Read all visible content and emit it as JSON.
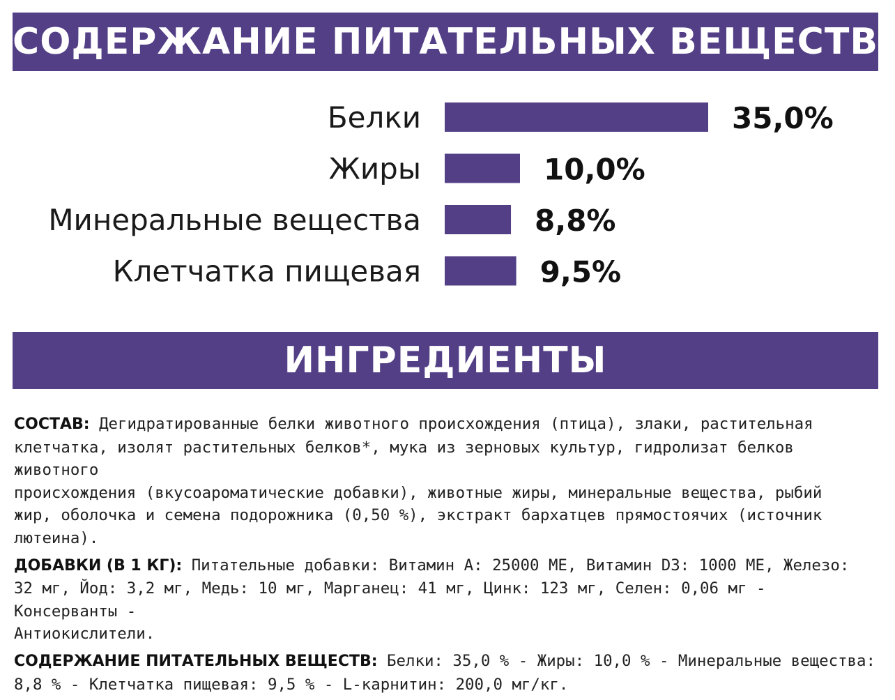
{
  "header": {
    "title": "СОДЕРЖАНИЕ ПИТАТЕЛЬНЫХ ВЕЩЕСТВ"
  },
  "colors": {
    "accent": "#533f86",
    "text": "#111111",
    "background": "#ffffff"
  },
  "chart_data": {
    "type": "bar",
    "orientation": "horizontal",
    "categories": [
      "Белки",
      "Жиры",
      "Минеральные вещества",
      "Клетчатка пищевая"
    ],
    "values": [
      35.0,
      10.0,
      8.8,
      9.5
    ],
    "value_labels": [
      "35,0%",
      "10,0%",
      "8,8%",
      "9,5%"
    ],
    "unit": "%",
    "grid": false,
    "legend": "none"
  },
  "ingredients_header": {
    "title": "ИНГРЕДИЕНТЫ"
  },
  "ingredients": {
    "composition": {
      "key": "СОСТАВ:",
      "lines": [
        " Дегидратированные белки животного происхождения (птица), злаки, растительная",
        "клетчатка, изолят растительных белков*, мука из зерновых культур, гидролизат белков животного",
        "происхождения (вкусоароматические добавки), животные жиры, минеральные вещества, рыбий",
        "жир, оболочка и семена подорожника (0,50 %), экстракт бархатцев прямостоячих (источник",
        "лютеина)."
      ]
    },
    "additives": {
      "key": "ДОБАВКИ (В 1 КГ):",
      "lines": [
        " Питательные добавки: Витамин А: 25000 МЕ, Витамин D3: 1000 МЕ, Железо:",
        "32 мг, Йод: 3,2 мг, Медь: 10 мг, Марганец: 41 мг, Цинк: 123 мг, Селен: 0,06 мг - Консерванты -",
        "Антиокислители."
      ]
    },
    "nutrients": {
      "key": "СОДЕРЖАНИЕ ПИТАТЕЛЬНЫХ ВЕЩЕСТВ:",
      "lines": [
        " Белки: 35,0 % - Жиры: 10,0 % - Минеральные вещества:",
        "8,8 % - Клетчатка пищевая: 9,5 % - L-карнитин: 200,0 мг/кг."
      ]
    }
  }
}
